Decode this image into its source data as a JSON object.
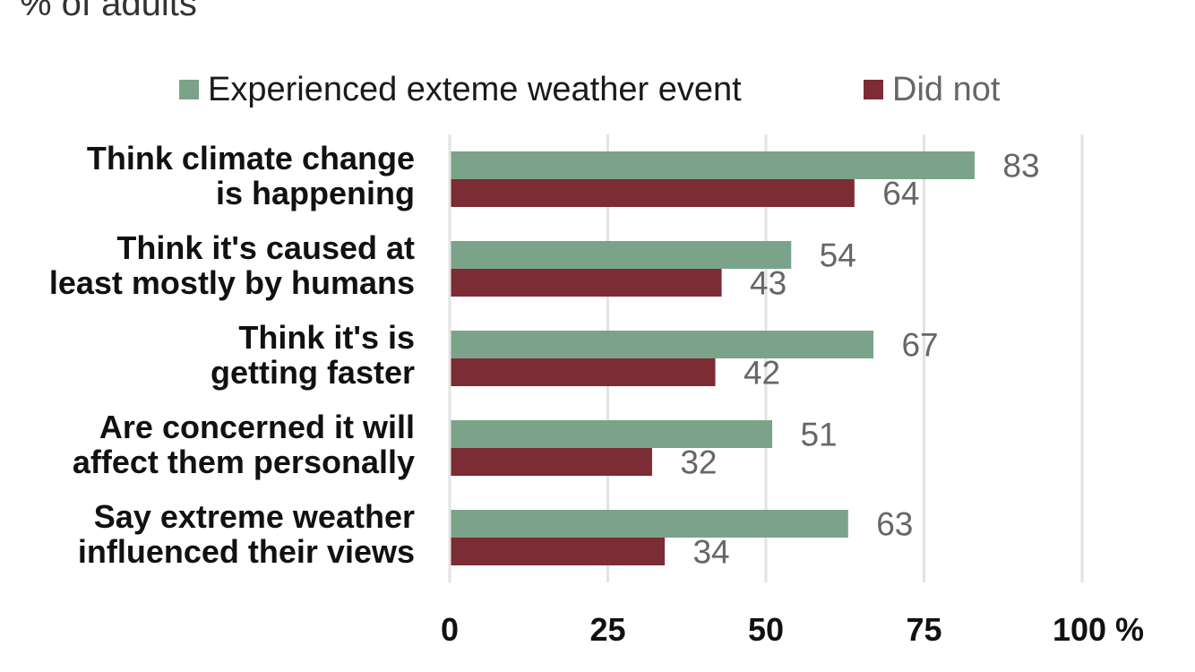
{
  "page": {
    "subtitle": "% of adults"
  },
  "legend": {
    "items": [
      {
        "label": "Experienced exteme weather event",
        "color": "#7ba38a",
        "text_color": "#1a1a1a"
      },
      {
        "label": "Did not",
        "color": "#7b2c35",
        "text_color": "#666666"
      }
    ]
  },
  "chart_data": {
    "type": "bar",
    "orientation": "horizontal",
    "categories": [
      [
        "Think climate change",
        "is happening"
      ],
      [
        "Think it's caused at",
        "least mostly by humans"
      ],
      [
        "Think it's is",
        "getting faster"
      ],
      [
        "Are concerned it will",
        "affect them personally"
      ],
      [
        "Say extreme weather",
        "influenced their views"
      ]
    ],
    "series": [
      {
        "name": "Experienced exteme weather event",
        "color": "#7ba38a",
        "values": [
          83,
          54,
          67,
          51,
          63
        ]
      },
      {
        "name": "Did not",
        "color": "#7b2c35",
        "values": [
          64,
          43,
          42,
          32,
          34
        ]
      }
    ],
    "xlim": [
      0,
      100
    ],
    "xticks": [
      0,
      25,
      50,
      75,
      100
    ],
    "xtick_labels": [
      "0",
      "25",
      "50",
      "75",
      "100 %"
    ],
    "grid": true,
    "data_labels": true,
    "legend_position": "top"
  }
}
